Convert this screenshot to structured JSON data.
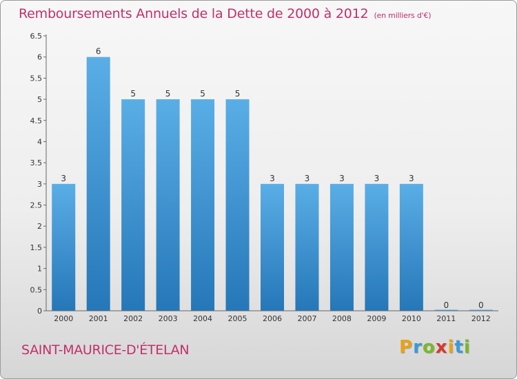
{
  "header": {
    "title": "Remboursements Annuels de la Dette de 2000 à 2012",
    "unit": "(en milliers d'€)"
  },
  "footer": {
    "commune": "SAINT-MAURICE-D'ÉTELAN",
    "brand": "Proxiti"
  },
  "colors": {
    "title": "#c0306a",
    "bar_top": "#5aaee6",
    "bar_bottom": "#2577b8",
    "brand_letters": [
      "#e8a317",
      "#3a9ad9",
      "#7ab828",
      "#d6392f",
      "#e8a317",
      "#3a9ad9",
      "#7ab828"
    ]
  },
  "chart_data": {
    "type": "bar",
    "categories": [
      "2000",
      "2001",
      "2002",
      "2003",
      "2004",
      "2005",
      "2006",
      "2007",
      "2008",
      "2009",
      "2010",
      "2011",
      "2012"
    ],
    "values": [
      3,
      6,
      5,
      5,
      5,
      5,
      3,
      3,
      3,
      3,
      3,
      0,
      0
    ],
    "value_labels": [
      "3",
      "6",
      "5",
      "5",
      "5",
      "5",
      "3",
      "3",
      "3",
      "3",
      "3",
      "0",
      "0"
    ],
    "y_ticks": [
      "0",
      "0.5",
      "1",
      "1.5",
      "2",
      "2.5",
      "3",
      "3.5",
      "4",
      "4.5",
      "5",
      "5.5",
      "6",
      "6.5"
    ],
    "ylim": [
      0,
      6.5
    ],
    "grid": false
  }
}
